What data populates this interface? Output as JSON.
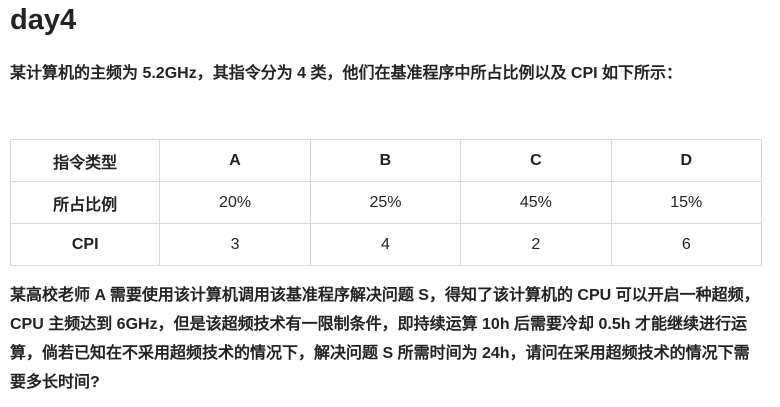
{
  "title": "day4",
  "intro": "某计算机的主频为 5.2GHz，其指令分为 4 类，他们在基准程序中所占比例以及 CPI 如下所示：",
  "table": {
    "header": {
      "label": "指令类型",
      "cells": [
        "A",
        "B",
        "C",
        "D"
      ]
    },
    "ratio_row": {
      "label": "所占比例",
      "cells": [
        "20%",
        "25%",
        "45%",
        "15%"
      ]
    },
    "cpi_row": {
      "label": "CPI",
      "cells": [
        "3",
        "4",
        "2",
        "6"
      ]
    }
  },
  "question": "某高校老师 A 需要使用该计算机调用该基准程序解决问题 S，得知了该计算机的 CPU 可以开启一种超频，CPU 主频达到 6GHz，但是该超频技术有一限制条件，即持续运算 10h 后需要冷却 0.5h 才能继续进行运算，倘若已知在不采用超频技术的情况下，解决问题 S 所需时间为 24h，请问在采用超频技术的情况下需要多长时间?"
}
